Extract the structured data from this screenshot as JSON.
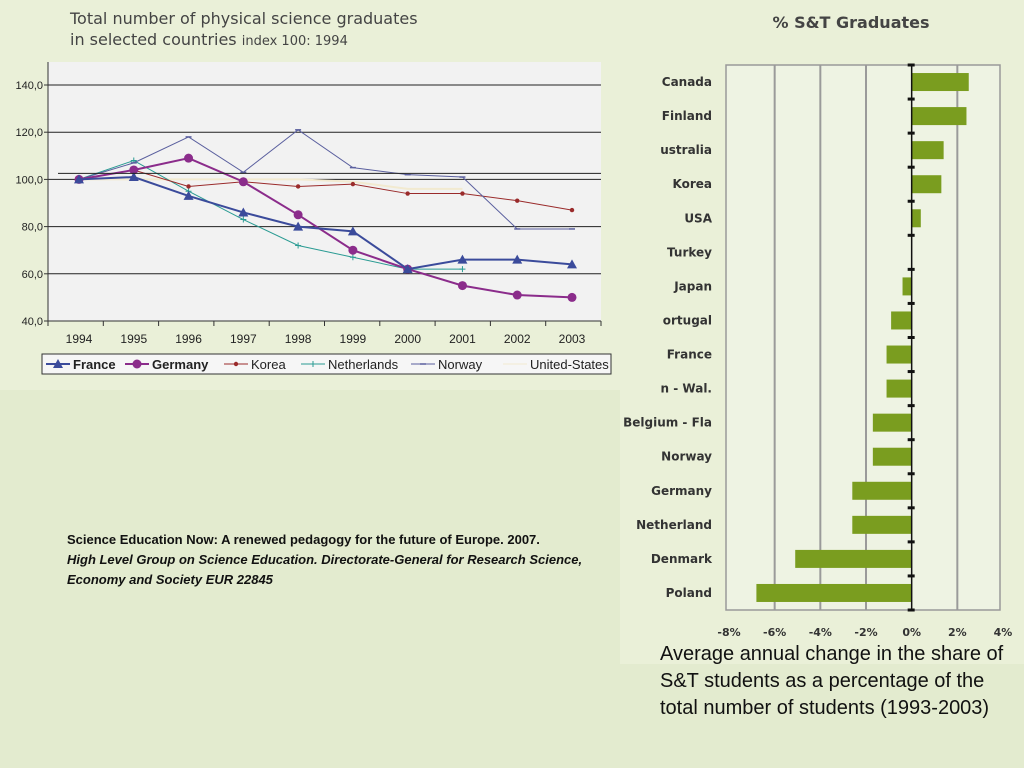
{
  "chart_data": [
    {
      "type": "line",
      "title": "Total number of physical science graduates",
      "subtitle_line2": "in selected countries",
      "subtitle_note": "index 100: 1994",
      "categories": [
        "1994",
        "1995",
        "1996",
        "1997",
        "1998",
        "1999",
        "2000",
        "2001",
        "2002",
        "2003"
      ],
      "y_tick_labels": [
        "140,0",
        "120,0",
        "100,0",
        "80,0",
        "60,0",
        "40,0"
      ],
      "ylim": [
        40,
        140
      ],
      "grid": true,
      "legend_position": "bottom",
      "series": [
        {
          "name": "France",
          "color": "#3b4b9b",
          "marker": "triangle",
          "values": [
            100,
            101,
            93,
            86,
            80,
            78,
            62,
            66,
            66,
            64
          ]
        },
        {
          "name": "Germany",
          "color": "#8b2c8b",
          "marker": "circle",
          "values": [
            100,
            104,
            109,
            99,
            85,
            70,
            62,
            55,
            51,
            50
          ]
        },
        {
          "name": "Korea",
          "color": "#9a2b2b",
          "marker": "dot",
          "values": [
            100,
            104,
            97,
            99,
            97,
            98,
            94,
            94,
            91,
            87
          ]
        },
        {
          "name": "Netherlands",
          "color": "#2a9b93",
          "marker": "plus",
          "values": [
            100,
            108,
            95,
            83,
            72,
            67,
            62,
            62,
            null,
            null
          ]
        },
        {
          "name": "Norway",
          "color": "#5a5f9e",
          "marker": "dash",
          "values": [
            100,
            107,
            118,
            103,
            121,
            105,
            102,
            101,
            79,
            79
          ]
        },
        {
          "name": "United-States",
          "color": "#f2ead0",
          "marker": "none",
          "values": [
            100,
            100,
            100,
            100,
            100,
            99,
            96,
            96,
            null,
            null
          ]
        }
      ]
    },
    {
      "type": "bar",
      "orientation": "horizontal",
      "title": "% S&T Graduates",
      "color": "#7a9d1f",
      "categories": [
        "Canada",
        "Finland",
        "ustralia",
        "Korea",
        "USA",
        "Turkey",
        "Japan",
        "ortugal",
        "France",
        "n - Wal.",
        "Belgium - Fla",
        "Norway",
        "Germany",
        "Netherland",
        "Denmark",
        "Poland"
      ],
      "values": [
        2.5,
        2.4,
        1.4,
        1.3,
        0.4,
        0.0,
        -0.4,
        -0.9,
        -1.1,
        -1.1,
        -1.7,
        -1.7,
        -2.6,
        -2.6,
        -5.1,
        -6.8
      ],
      "x_tick_labels": [
        "-8%",
        "-6%",
        "-4%",
        "-2%",
        "0%",
        "2%",
        "4%"
      ],
      "xlim": [
        -8,
        4
      ],
      "grid": true
    }
  ],
  "citation": {
    "line1": "Science Education Now: A renewed pedagogy for the future of Europe. 2007.",
    "line2": "High Level Group on Science Education. Directorate-General for Research Science, Economy and Society EUR 22845"
  },
  "caption": "Average annual change in the share of S&T students as a percentage of the total number of students (1993-2003)"
}
